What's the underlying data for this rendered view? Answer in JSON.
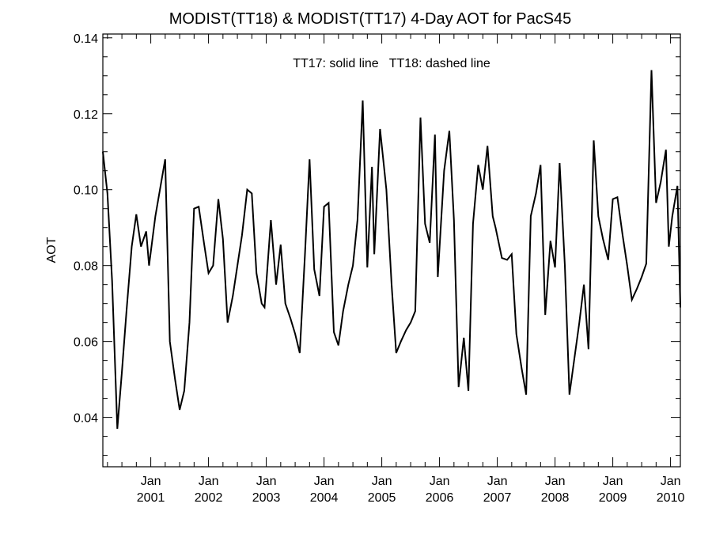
{
  "chart_data": {
    "type": "line",
    "title": "MODIST(TT18) & MODIST(TT17) 4-Day AOT for PacS45",
    "annotation": "TT17: solid line   TT18: dashed line",
    "ylabel": "AOT",
    "xlabel": "",
    "ylim": [
      0.027,
      0.141
    ],
    "xlim": [
      2000.17,
      2010.17
    ],
    "y_ticks": [
      {
        "value": 0.04,
        "label": "0.04"
      },
      {
        "value": 0.06,
        "label": "0.06"
      },
      {
        "value": 0.08,
        "label": "0.08"
      },
      {
        "value": 0.1,
        "label": "0.10"
      },
      {
        "value": 0.12,
        "label": "0.12"
      },
      {
        "value": 0.14,
        "label": "0.14"
      }
    ],
    "y_minor_step": 0.005,
    "x_ticks": [
      {
        "value": 2001,
        "label_top": "Jan",
        "label_bottom": "2001"
      },
      {
        "value": 2002,
        "label_top": "Jan",
        "label_bottom": "2002"
      },
      {
        "value": 2003,
        "label_top": "Jan",
        "label_bottom": "2003"
      },
      {
        "value": 2004,
        "label_top": "Jan",
        "label_bottom": "2004"
      },
      {
        "value": 2005,
        "label_top": "Jan",
        "label_bottom": "2005"
      },
      {
        "value": 2006,
        "label_top": "Jan",
        "label_bottom": "2006"
      },
      {
        "value": 2007,
        "label_top": "Jan",
        "label_bottom": "2007"
      },
      {
        "value": 2008,
        "label_top": "Jan",
        "label_bottom": "2008"
      },
      {
        "value": 2009,
        "label_top": "Jan",
        "label_bottom": "2009"
      },
      {
        "value": 2010,
        "label_top": "Jan",
        "label_bottom": "2010"
      }
    ],
    "grid": false,
    "series": [
      {
        "style": "solid",
        "color": "#000000",
        "points": [
          [
            2000.17,
            0.11
          ],
          [
            2000.25,
            0.099
          ],
          [
            2000.33,
            0.076
          ],
          [
            2000.42,
            0.037
          ],
          [
            2000.5,
            0.052
          ],
          [
            2000.58,
            0.068
          ],
          [
            2000.67,
            0.085
          ],
          [
            2000.75,
            0.0935
          ],
          [
            2000.83,
            0.085
          ],
          [
            2000.92,
            0.089
          ],
          [
            2000.97,
            0.08
          ],
          [
            2001.08,
            0.093
          ],
          [
            2001.17,
            0.101
          ],
          [
            2001.25,
            0.108
          ],
          [
            2001.33,
            0.06
          ],
          [
            2001.42,
            0.05
          ],
          [
            2001.5,
            0.042
          ],
          [
            2001.58,
            0.047
          ],
          [
            2001.67,
            0.065
          ],
          [
            2001.75,
            0.095
          ],
          [
            2001.83,
            0.0955
          ],
          [
            2001.92,
            0.086
          ],
          [
            2002.0,
            0.078
          ],
          [
            2002.08,
            0.08
          ],
          [
            2002.17,
            0.0975
          ],
          [
            2002.25,
            0.087
          ],
          [
            2002.33,
            0.065
          ],
          [
            2002.42,
            0.072
          ],
          [
            2002.5,
            0.08
          ],
          [
            2002.58,
            0.088
          ],
          [
            2002.67,
            0.1
          ],
          [
            2002.75,
            0.099
          ],
          [
            2002.83,
            0.078
          ],
          [
            2002.92,
            0.07
          ],
          [
            2002.97,
            0.069
          ],
          [
            2003.08,
            0.092
          ],
          [
            2003.17,
            0.075
          ],
          [
            2003.25,
            0.0855
          ],
          [
            2003.33,
            0.07
          ],
          [
            2003.42,
            0.066
          ],
          [
            2003.5,
            0.062
          ],
          [
            2003.58,
            0.057
          ],
          [
            2003.67,
            0.083
          ],
          [
            2003.75,
            0.108
          ],
          [
            2003.83,
            0.079
          ],
          [
            2003.92,
            0.072
          ],
          [
            2004.0,
            0.0955
          ],
          [
            2004.08,
            0.0965
          ],
          [
            2004.17,
            0.0625
          ],
          [
            2004.25,
            0.059
          ],
          [
            2004.33,
            0.068
          ],
          [
            2004.42,
            0.075
          ],
          [
            2004.5,
            0.08
          ],
          [
            2004.58,
            0.092
          ],
          [
            2004.67,
            0.1235
          ],
          [
            2004.75,
            0.0795
          ],
          [
            2004.83,
            0.106
          ],
          [
            2004.87,
            0.083
          ],
          [
            2004.97,
            0.116
          ],
          [
            2005.08,
            0.1
          ],
          [
            2005.17,
            0.075
          ],
          [
            2005.25,
            0.057
          ],
          [
            2005.33,
            0.06
          ],
          [
            2005.42,
            0.063
          ],
          [
            2005.5,
            0.065
          ],
          [
            2005.58,
            0.068
          ],
          [
            2005.67,
            0.119
          ],
          [
            2005.75,
            0.091
          ],
          [
            2005.83,
            0.086
          ],
          [
            2005.92,
            0.1145
          ],
          [
            2005.97,
            0.077
          ],
          [
            2006.08,
            0.105
          ],
          [
            2006.17,
            0.1155
          ],
          [
            2006.25,
            0.092
          ],
          [
            2006.33,
            0.048
          ],
          [
            2006.42,
            0.061
          ],
          [
            2006.5,
            0.047
          ],
          [
            2006.58,
            0.091
          ],
          [
            2006.67,
            0.1065
          ],
          [
            2006.75,
            0.1
          ],
          [
            2006.83,
            0.1115
          ],
          [
            2006.92,
            0.093
          ],
          [
            2006.97,
            0.09
          ],
          [
            2007.08,
            0.082
          ],
          [
            2007.17,
            0.0815
          ],
          [
            2007.25,
            0.083
          ],
          [
            2007.33,
            0.062
          ],
          [
            2007.42,
            0.053
          ],
          [
            2007.5,
            0.046
          ],
          [
            2007.58,
            0.093
          ],
          [
            2007.67,
            0.099
          ],
          [
            2007.75,
            0.1065
          ],
          [
            2007.83,
            0.067
          ],
          [
            2007.92,
            0.0865
          ],
          [
            2008.0,
            0.0795
          ],
          [
            2008.08,
            0.107
          ],
          [
            2008.17,
            0.08
          ],
          [
            2008.25,
            0.046
          ],
          [
            2008.33,
            0.055
          ],
          [
            2008.42,
            0.065
          ],
          [
            2008.5,
            0.075
          ],
          [
            2008.58,
            0.058
          ],
          [
            2008.67,
            0.113
          ],
          [
            2008.75,
            0.093
          ],
          [
            2008.83,
            0.087
          ],
          [
            2008.92,
            0.0815
          ],
          [
            2009.0,
            0.0975
          ],
          [
            2009.08,
            0.098
          ],
          [
            2009.17,
            0.088
          ],
          [
            2009.25,
            0.08
          ],
          [
            2009.33,
            0.071
          ],
          [
            2009.42,
            0.074
          ],
          [
            2009.5,
            0.077
          ],
          [
            2009.58,
            0.0805
          ],
          [
            2009.67,
            0.1315
          ],
          [
            2009.75,
            0.0965
          ],
          [
            2009.83,
            0.102
          ],
          [
            2009.92,
            0.1105
          ],
          [
            2009.97,
            0.085
          ],
          [
            2010.03,
            0.093
          ],
          [
            2010.12,
            0.101
          ],
          [
            2010.17,
            0.069
          ]
        ]
      }
    ]
  }
}
